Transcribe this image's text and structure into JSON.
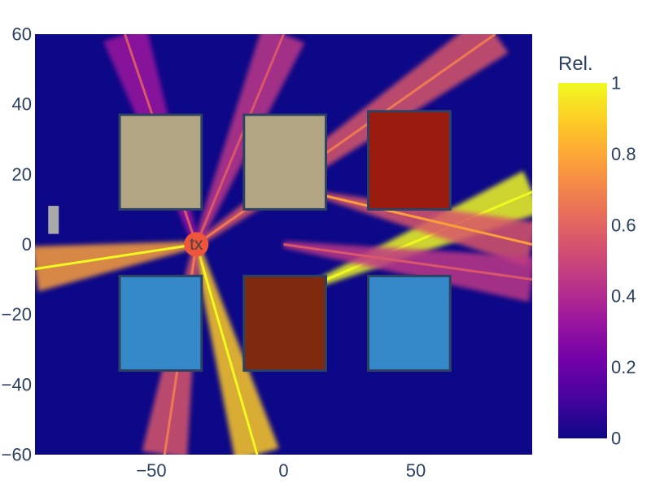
{
  "chart_data": {
    "type": "heatmap",
    "title": "",
    "xlabel": "",
    "ylabel": "",
    "xlim": [
      -94,
      94
    ],
    "ylim": [
      -60,
      60
    ],
    "x_ticks": [
      -50,
      0,
      50
    ],
    "x_tick_labels": [
      "−50",
      "0",
      "50"
    ],
    "y_ticks": [
      60,
      40,
      20,
      0,
      -20,
      -40,
      -60
    ],
    "y_tick_labels": [
      "60",
      "40",
      "20",
      "0",
      "−20",
      "−40",
      "−60"
    ],
    "colorbar": {
      "title": "Rel.",
      "range": [
        0,
        1
      ],
      "ticks": [
        1,
        0.8,
        0.6,
        0.4,
        0.2,
        0
      ],
      "tick_labels": [
        "1",
        "0.8",
        "0.6",
        "0.4",
        "0.2",
        "0"
      ],
      "colors": [
        "#0d0887",
        "#46039f",
        "#7201a8",
        "#9c179e",
        "#bd3786",
        "#d8576b",
        "#ed7953",
        "#fb9f3a",
        "#fdca26",
        "#f0f921"
      ]
    },
    "background_level": 0.05,
    "beams": [
      {
        "x0": -33,
        "y0": 0,
        "x1": 80,
        "y1": 60,
        "level": 0.55
      },
      {
        "x0": -33,
        "y0": 0,
        "x1": 0,
        "y1": 60,
        "level": 0.45
      },
      {
        "x0": -33,
        "y0": 0,
        "x1": -60,
        "y1": 60,
        "level": 0.35
      },
      {
        "x0": -33,
        "y0": 0,
        "x1": -94,
        "y1": -7,
        "level": 0.8
      },
      {
        "x0": -33,
        "y0": 0,
        "x1": -10,
        "y1": -60,
        "level": 0.85
      },
      {
        "x0": -33,
        "y0": 0,
        "x1": -45,
        "y1": -60,
        "level": 0.55
      },
      {
        "x0": 10,
        "y0": -12,
        "x1": 94,
        "y1": 15,
        "level": 0.95
      },
      {
        "x0": 15,
        "y0": 14,
        "x1": 94,
        "y1": 0,
        "level": 0.6
      },
      {
        "x0": 0,
        "y0": 0,
        "x1": 94,
        "y1": -10,
        "level": 0.4
      }
    ],
    "buildings": [
      {
        "x0": -62,
        "x1": -31,
        "y0": 10,
        "y1": 37,
        "color": "#b2a584"
      },
      {
        "x0": -15,
        "x1": 16,
        "y0": 10,
        "y1": 37,
        "color": "#b2a584"
      },
      {
        "x0": 32,
        "x1": 63,
        "y0": 10,
        "y1": 38,
        "color": "#9b1b0f"
      },
      {
        "x0": -62,
        "x1": -31,
        "y0": -36,
        "y1": -9,
        "color": "#3689c8"
      },
      {
        "x0": -15,
        "x1": 16,
        "y0": -36,
        "y1": -9,
        "color": "#7f2a0f"
      },
      {
        "x0": 32,
        "x1": 63,
        "y0": -36,
        "y1": -9,
        "color": "#3689c8"
      }
    ],
    "building_border_color": "#2d4263",
    "obstacle": {
      "x0": -89,
      "x1": -85,
      "y0": 3,
      "y1": 11,
      "color": "#a9a9a9"
    },
    "transmitter": {
      "x": -33,
      "y": 0,
      "label": "tx",
      "color": "#ef553b"
    }
  }
}
